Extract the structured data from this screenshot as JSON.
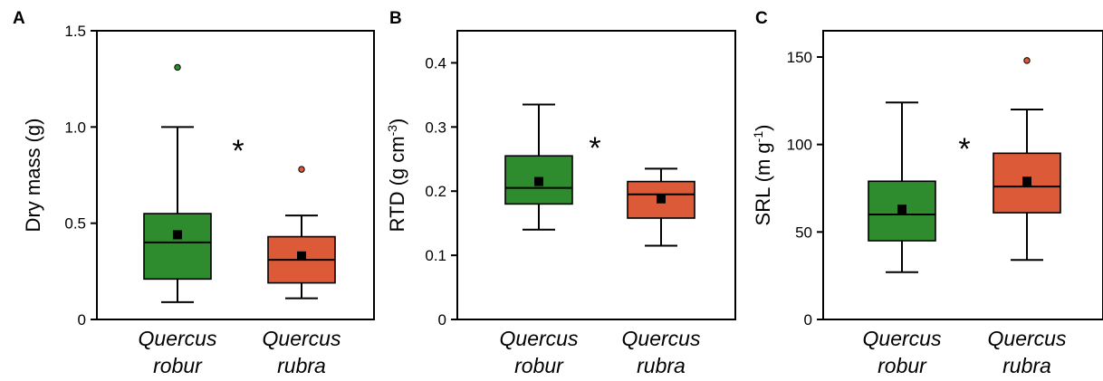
{
  "colors": {
    "green": "#2e8b2e",
    "red": "#dc5a37",
    "axis": "#000000"
  },
  "chart_data": [
    {
      "type": "box",
      "panel_label": "A",
      "ylabel": "Dry mass (g)",
      "ylim": [
        0,
        1.5
      ],
      "yticks": [
        0,
        0.5,
        1.0,
        1.5
      ],
      "ytick_labels": [
        "0",
        "0.5",
        "1.0",
        "1.5"
      ],
      "categories": [
        {
          "line1": "Quercus",
          "line2": "robur"
        },
        {
          "line1": "Quercus",
          "line2": "rubra"
        }
      ],
      "annotation": "*",
      "boxes": [
        {
          "color": "green",
          "whisker_low": 0.09,
          "q1": 0.21,
          "median": 0.4,
          "q3": 0.55,
          "whisker_high": 1.0,
          "mean": 0.44,
          "outliers": [
            1.31
          ]
        },
        {
          "color": "red",
          "whisker_low": 0.11,
          "q1": 0.19,
          "median": 0.31,
          "q3": 0.43,
          "whisker_high": 0.54,
          "mean": 0.33,
          "outliers": [
            0.78
          ]
        }
      ]
    },
    {
      "type": "box",
      "panel_label": "B",
      "ylabel": "RTD (g cm",
      "ylabel_sup": "-3",
      "ylabel_end": ")",
      "ylim": [
        0,
        0.45
      ],
      "yticks": [
        0,
        0.1,
        0.2,
        0.3,
        0.4
      ],
      "ytick_labels": [
        "0",
        "0.1",
        "0.2",
        "0.3",
        "0.4"
      ],
      "categories": [
        {
          "line1": "Quercus",
          "line2": "robur"
        },
        {
          "line1": "Quercus",
          "line2": "rubra"
        }
      ],
      "annotation": "*",
      "boxes": [
        {
          "color": "green",
          "whisker_low": 0.14,
          "q1": 0.18,
          "median": 0.205,
          "q3": 0.255,
          "whisker_high": 0.335,
          "mean": 0.215,
          "outliers": []
        },
        {
          "color": "red",
          "whisker_low": 0.115,
          "q1": 0.158,
          "median": 0.195,
          "q3": 0.215,
          "whisker_high": 0.235,
          "mean": 0.188,
          "outliers": []
        }
      ]
    },
    {
      "type": "box",
      "panel_label": "C",
      "ylabel": "SRL (m g",
      "ylabel_sup": "-1",
      "ylabel_end": ")",
      "ylim": [
        0,
        165
      ],
      "yticks": [
        0,
        50,
        100,
        150
      ],
      "ytick_labels": [
        "0",
        "50",
        "100",
        "150"
      ],
      "categories": [
        {
          "line1": "Quercus",
          "line2": "robur"
        },
        {
          "line1": "Quercus",
          "line2": "rubra"
        }
      ],
      "annotation": "*",
      "boxes": [
        {
          "color": "green",
          "whisker_low": 27,
          "q1": 45,
          "median": 60,
          "q3": 79,
          "whisker_high": 124,
          "mean": 63,
          "outliers": []
        },
        {
          "color": "red",
          "whisker_low": 34,
          "q1": 61,
          "median": 76,
          "q3": 95,
          "whisker_high": 120,
          "mean": 79,
          "outliers": [
            148
          ]
        }
      ]
    }
  ]
}
